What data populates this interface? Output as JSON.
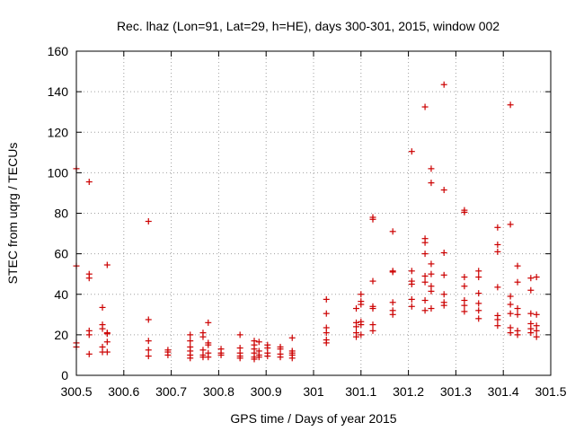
{
  "chart_data": {
    "type": "scatter",
    "title": "Rec. lhaz (Lon=91, Lat=29, h=HE), days 300-301, 2015, window 002",
    "xlabel": "GPS time / Days of year 2015",
    "ylabel": "STEC from uqrg / TECUs",
    "xlim": [
      300.5,
      301.5
    ],
    "ylim": [
      0,
      160
    ],
    "xticks": [
      "300.5",
      "300.6",
      "300.7",
      "300.8",
      "300.9",
      "301",
      "301.1",
      "301.2",
      "301.3",
      "301.4",
      "301.5"
    ],
    "yticks": [
      "0",
      "20",
      "40",
      "60",
      "80",
      "100",
      "120",
      "140",
      "160"
    ],
    "grid": true,
    "marker": "+",
    "color": "#cc0000",
    "series": [
      {
        "points": [
          [
            300.5,
            102
          ],
          [
            300.5,
            54
          ],
          [
            300.5,
            16
          ],
          [
            300.5,
            14
          ],
          [
            300.527,
            95.5
          ],
          [
            300.527,
            50
          ],
          [
            300.527,
            48
          ],
          [
            300.527,
            22
          ],
          [
            300.527,
            20
          ],
          [
            300.527,
            10.5
          ],
          [
            300.555,
            33.5
          ],
          [
            300.555,
            25
          ],
          [
            300.555,
            23
          ],
          [
            300.555,
            14
          ],
          [
            300.555,
            11.5
          ],
          [
            300.565,
            54.5
          ],
          [
            300.565,
            21
          ],
          [
            300.565,
            20.5
          ],
          [
            300.565,
            16.5
          ],
          [
            300.565,
            11.5
          ],
          [
            300.652,
            76
          ],
          [
            300.652,
            27.5
          ],
          [
            300.652,
            17
          ],
          [
            300.652,
            12.5
          ],
          [
            300.652,
            9.5
          ],
          [
            300.693,
            12.5
          ],
          [
            300.693,
            11.5
          ],
          [
            300.693,
            10
          ],
          [
            300.74,
            20
          ],
          [
            300.74,
            17
          ],
          [
            300.74,
            14
          ],
          [
            300.74,
            12
          ],
          [
            300.74,
            10
          ],
          [
            300.74,
            8.5
          ],
          [
            300.767,
            21
          ],
          [
            300.767,
            19
          ],
          [
            300.767,
            12.5
          ],
          [
            300.767,
            10
          ],
          [
            300.767,
            9
          ],
          [
            300.778,
            26
          ],
          [
            300.778,
            16
          ],
          [
            300.778,
            15
          ],
          [
            300.778,
            11
          ],
          [
            300.778,
            9
          ],
          [
            300.805,
            13
          ],
          [
            300.805,
            11
          ],
          [
            300.805,
            10
          ],
          [
            300.845,
            20
          ],
          [
            300.845,
            13.5
          ],
          [
            300.845,
            11
          ],
          [
            300.845,
            9.5
          ],
          [
            300.845,
            8.5
          ],
          [
            300.875,
            17
          ],
          [
            300.875,
            15
          ],
          [
            300.875,
            13
          ],
          [
            300.875,
            11
          ],
          [
            300.875,
            9
          ],
          [
            300.875,
            8
          ],
          [
            300.885,
            16.5
          ],
          [
            300.885,
            12
          ],
          [
            300.885,
            10
          ],
          [
            300.885,
            9
          ],
          [
            300.903,
            15
          ],
          [
            300.903,
            13.5
          ],
          [
            300.903,
            11
          ],
          [
            300.903,
            9.5
          ],
          [
            300.93,
            14
          ],
          [
            300.93,
            13
          ],
          [
            300.93,
            10.5
          ],
          [
            300.93,
            9
          ],
          [
            300.955,
            18.5
          ],
          [
            300.955,
            12
          ],
          [
            300.955,
            11
          ],
          [
            300.955,
            10
          ],
          [
            300.955,
            8.5
          ],
          [
            301.027,
            37.5
          ],
          [
            301.027,
            30.5
          ],
          [
            301.027,
            23.5
          ],
          [
            301.027,
            21
          ],
          [
            301.027,
            17.5
          ],
          [
            301.027,
            16
          ],
          [
            301.09,
            33
          ],
          [
            301.09,
            26
          ],
          [
            301.09,
            24
          ],
          [
            301.09,
            21
          ],
          [
            301.09,
            19
          ],
          [
            301.1,
            40
          ],
          [
            301.1,
            36.5
          ],
          [
            301.1,
            35
          ],
          [
            301.1,
            26.5
          ],
          [
            301.1,
            25
          ],
          [
            301.1,
            20
          ],
          [
            301.125,
            78
          ],
          [
            301.125,
            77
          ],
          [
            301.125,
            46.5
          ],
          [
            301.125,
            34
          ],
          [
            301.125,
            33
          ],
          [
            301.125,
            25
          ],
          [
            301.125,
            22
          ],
          [
            301.167,
            71
          ],
          [
            301.167,
            51.5
          ],
          [
            301.167,
            51
          ],
          [
            301.167,
            36
          ],
          [
            301.167,
            32
          ],
          [
            301.167,
            30
          ],
          [
            301.207,
            110.5
          ],
          [
            301.207,
            51.5
          ],
          [
            301.207,
            46.5
          ],
          [
            301.207,
            45
          ],
          [
            301.207,
            37.5
          ],
          [
            301.207,
            34
          ],
          [
            301.235,
            132.5
          ],
          [
            301.235,
            67.5
          ],
          [
            301.235,
            65.5
          ],
          [
            301.235,
            60
          ],
          [
            301.235,
            49
          ],
          [
            301.235,
            46
          ],
          [
            301.235,
            37
          ],
          [
            301.235,
            32
          ],
          [
            301.248,
            102
          ],
          [
            301.248,
            95
          ],
          [
            301.248,
            55
          ],
          [
            301.248,
            50
          ],
          [
            301.248,
            44
          ],
          [
            301.248,
            41.5
          ],
          [
            301.248,
            33
          ],
          [
            301.275,
            143.5
          ],
          [
            301.275,
            91.5
          ],
          [
            301.275,
            60.5
          ],
          [
            301.275,
            49.5
          ],
          [
            301.275,
            40
          ],
          [
            301.275,
            36
          ],
          [
            301.275,
            34.5
          ],
          [
            301.318,
            81.5
          ],
          [
            301.318,
            80.5
          ],
          [
            301.318,
            48.5
          ],
          [
            301.318,
            44
          ],
          [
            301.318,
            37
          ],
          [
            301.318,
            34.5
          ],
          [
            301.318,
            31.5
          ],
          [
            301.348,
            51.5
          ],
          [
            301.348,
            48.5
          ],
          [
            301.348,
            40.5
          ],
          [
            301.348,
            35.5
          ],
          [
            301.348,
            32
          ],
          [
            301.348,
            28
          ],
          [
            301.388,
            73
          ],
          [
            301.388,
            64.5
          ],
          [
            301.388,
            61
          ],
          [
            301.388,
            43.5
          ],
          [
            301.388,
            29.5
          ],
          [
            301.388,
            27.5
          ],
          [
            301.388,
            24.5
          ],
          [
            301.415,
            133.5
          ],
          [
            301.415,
            74.5
          ],
          [
            301.415,
            39
          ],
          [
            301.415,
            35
          ],
          [
            301.415,
            30.5
          ],
          [
            301.415,
            23.5
          ],
          [
            301.415,
            21
          ],
          [
            301.43,
            54
          ],
          [
            301.43,
            46
          ],
          [
            301.43,
            33
          ],
          [
            301.43,
            30
          ],
          [
            301.43,
            22
          ],
          [
            301.43,
            20
          ],
          [
            301.458,
            48
          ],
          [
            301.458,
            42
          ],
          [
            301.458,
            30.5
          ],
          [
            301.458,
            25.5
          ],
          [
            301.458,
            23
          ],
          [
            301.458,
            21
          ],
          [
            301.47,
            48.5
          ],
          [
            301.47,
            30
          ],
          [
            301.47,
            24.5
          ],
          [
            301.47,
            22
          ],
          [
            301.47,
            19
          ]
        ]
      }
    ]
  }
}
